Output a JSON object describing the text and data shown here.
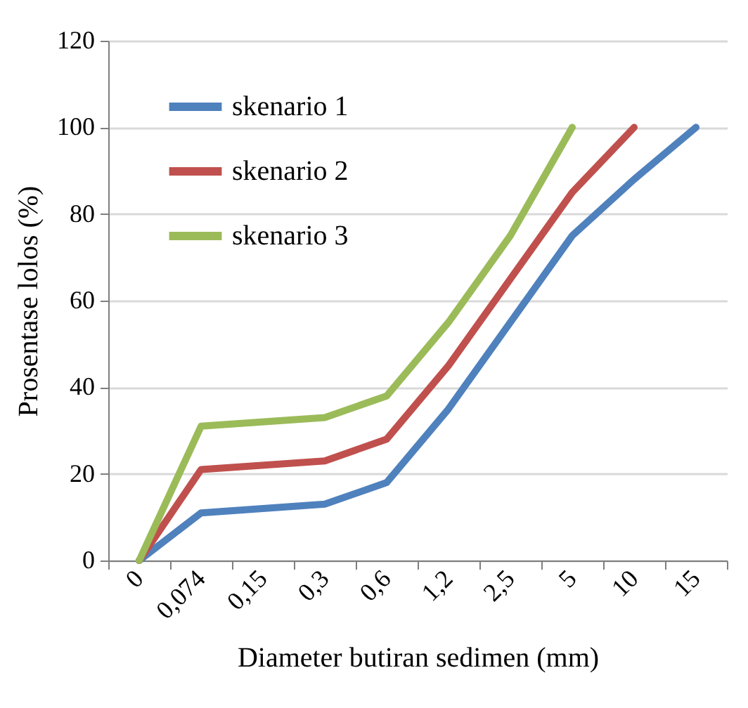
{
  "chart_data": {
    "type": "line",
    "xlabel": "Diameter butiran sedimen (mm)",
    "ylabel": "Prosentase lolos (%)",
    "categories": [
      "0",
      "0,074",
      "0,15",
      "0,3",
      "0,6",
      "1,2",
      "2,5",
      "5",
      "10",
      "15"
    ],
    "series": [
      {
        "name": "skenario 1",
        "color": "#4f81bd",
        "values": [
          0,
          11,
          null,
          13,
          18,
          35,
          55,
          75,
          88,
          100
        ]
      },
      {
        "name": "skenario 2",
        "color": "#c0504d",
        "values": [
          0,
          21,
          null,
          23,
          28,
          45,
          65,
          85,
          100,
          null
        ]
      },
      {
        "name": "skenario 3",
        "color": "#9bbb59",
        "values": [
          0,
          31,
          null,
          33,
          38,
          55,
          75,
          100,
          null,
          null
        ]
      }
    ],
    "ylim": [
      0,
      120
    ],
    "yticks": [
      0,
      20,
      40,
      60,
      80,
      100,
      120
    ],
    "grid": "y",
    "legend": "top left",
    "marker": "none",
    "line_style": "solid"
  }
}
